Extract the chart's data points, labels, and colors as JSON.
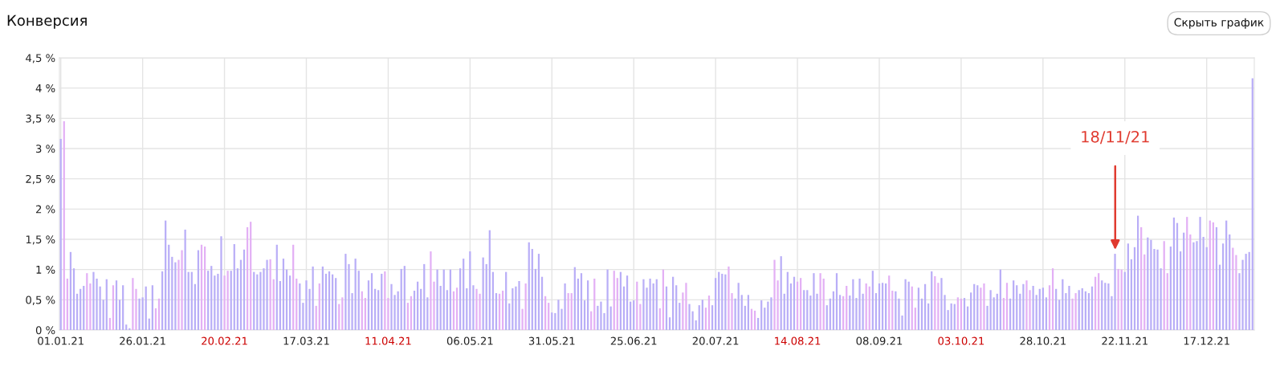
{
  "chart_data": {
    "type": "bar",
    "title": "Конверсия",
    "x": [
      "2021-01-01",
      "2021-01-02",
      "2021-01-03",
      "2021-01-04",
      "2021-01-05",
      "2021-01-06",
      "2021-01-07",
      "2021-01-08",
      "2021-01-09",
      "2021-01-10",
      "2021-01-11",
      "2021-01-12",
      "2021-01-13",
      "2021-01-14",
      "2021-01-15",
      "2021-01-16",
      "2021-01-17",
      "2021-01-18",
      "2021-01-19",
      "2021-01-20",
      "2021-01-21",
      "2021-01-22",
      "2021-01-23",
      "2021-01-24",
      "2021-01-25",
      "2021-01-26",
      "2021-01-27",
      "2021-01-28",
      "2021-01-29",
      "2021-01-30",
      "2021-01-31",
      "2021-02-01",
      "2021-02-02",
      "2021-02-03",
      "2021-02-04",
      "2021-02-05",
      "2021-02-06",
      "2021-02-07",
      "2021-02-08",
      "2021-02-09",
      "2021-02-10",
      "2021-02-11",
      "2021-02-12",
      "2021-02-13",
      "2021-02-14",
      "2021-02-15",
      "2021-02-16",
      "2021-02-17",
      "2021-02-18",
      "2021-02-19",
      "2021-02-20",
      "2021-02-21",
      "2021-02-22",
      "2021-02-23",
      "2021-02-24",
      "2021-02-25",
      "2021-02-26",
      "2021-02-27",
      "2021-02-28",
      "2021-03-01",
      "2021-03-02",
      "2021-03-03",
      "2021-03-04",
      "2021-03-05",
      "2021-03-06",
      "2021-03-07",
      "2021-03-08",
      "2021-03-09",
      "2021-03-10",
      "2021-03-11",
      "2021-03-12",
      "2021-03-13",
      "2021-03-14",
      "2021-03-15",
      "2021-03-16",
      "2021-03-17",
      "2021-03-18",
      "2021-03-19",
      "2021-03-20",
      "2021-03-21",
      "2021-03-22",
      "2021-03-23",
      "2021-03-24",
      "2021-03-25",
      "2021-03-26",
      "2021-03-27",
      "2021-03-28",
      "2021-03-29",
      "2021-03-30",
      "2021-03-31",
      "2021-04-01",
      "2021-04-02",
      "2021-04-03",
      "2021-04-04",
      "2021-04-05",
      "2021-04-06",
      "2021-04-07",
      "2021-04-08",
      "2021-04-09",
      "2021-04-10",
      "2021-04-11",
      "2021-04-12",
      "2021-04-13",
      "2021-04-14",
      "2021-04-15",
      "2021-04-16",
      "2021-04-17",
      "2021-04-18",
      "2021-04-19",
      "2021-04-20",
      "2021-04-21",
      "2021-04-22",
      "2021-04-23",
      "2021-04-24",
      "2021-04-25",
      "2021-04-26",
      "2021-04-27",
      "2021-04-28",
      "2021-04-29",
      "2021-04-30",
      "2021-05-01",
      "2021-05-02",
      "2021-05-03",
      "2021-05-04",
      "2021-05-05",
      "2021-05-06",
      "2021-05-07",
      "2021-05-08",
      "2021-05-09",
      "2021-05-10",
      "2021-05-11",
      "2021-05-12",
      "2021-05-13",
      "2021-05-14",
      "2021-05-15",
      "2021-05-16",
      "2021-05-17",
      "2021-05-18",
      "2021-05-19",
      "2021-05-20",
      "2021-05-21",
      "2021-05-22",
      "2021-05-23",
      "2021-05-24",
      "2021-05-25",
      "2021-05-26",
      "2021-05-27",
      "2021-05-28",
      "2021-05-29",
      "2021-05-30",
      "2021-05-31",
      "2021-06-01",
      "2021-06-02",
      "2021-06-03",
      "2021-06-04",
      "2021-06-05",
      "2021-06-06",
      "2021-06-07",
      "2021-06-08",
      "2021-06-09",
      "2021-06-10",
      "2021-06-11",
      "2021-06-12",
      "2021-06-13",
      "2021-06-14",
      "2021-06-15",
      "2021-06-16",
      "2021-06-17",
      "2021-06-18",
      "2021-06-19",
      "2021-06-20",
      "2021-06-21",
      "2021-06-22",
      "2021-06-23",
      "2021-06-24",
      "2021-06-25",
      "2021-06-26",
      "2021-06-27",
      "2021-06-28",
      "2021-06-29",
      "2021-06-30",
      "2021-07-01",
      "2021-07-02",
      "2021-07-03",
      "2021-07-04",
      "2021-07-05",
      "2021-07-06",
      "2021-07-07",
      "2021-07-08",
      "2021-07-09",
      "2021-07-10",
      "2021-07-11",
      "2021-07-12",
      "2021-07-13",
      "2021-07-14",
      "2021-07-15",
      "2021-07-16",
      "2021-07-17",
      "2021-07-18",
      "2021-07-19",
      "2021-07-20",
      "2021-07-21",
      "2021-07-22",
      "2021-07-23",
      "2021-07-24",
      "2021-07-25",
      "2021-07-26",
      "2021-07-27",
      "2021-07-28",
      "2021-07-29",
      "2021-07-30",
      "2021-07-31",
      "2021-08-01",
      "2021-08-02",
      "2021-08-03",
      "2021-08-04",
      "2021-08-05",
      "2021-08-06",
      "2021-08-07",
      "2021-08-08",
      "2021-08-09",
      "2021-08-10",
      "2021-08-11",
      "2021-08-12",
      "2021-08-13",
      "2021-08-14",
      "2021-08-15",
      "2021-08-16",
      "2021-08-17",
      "2021-08-18",
      "2021-08-19",
      "2021-08-20",
      "2021-08-21",
      "2021-08-22",
      "2021-08-23",
      "2021-08-24",
      "2021-08-25",
      "2021-08-26",
      "2021-08-27",
      "2021-08-28",
      "2021-08-29",
      "2021-08-30",
      "2021-08-31",
      "2021-09-01",
      "2021-09-02",
      "2021-09-03",
      "2021-09-04",
      "2021-09-05",
      "2021-09-06",
      "2021-09-07",
      "2021-09-08",
      "2021-09-09",
      "2021-09-10",
      "2021-09-11",
      "2021-09-12",
      "2021-09-13",
      "2021-09-14",
      "2021-09-15",
      "2021-09-16",
      "2021-09-17",
      "2021-09-18",
      "2021-09-19",
      "2021-09-20",
      "2021-09-21",
      "2021-09-22",
      "2021-09-23",
      "2021-09-24",
      "2021-09-25",
      "2021-09-26",
      "2021-09-27",
      "2021-09-28",
      "2021-09-29",
      "2021-09-30",
      "2021-10-01",
      "2021-10-02",
      "2021-10-03",
      "2021-10-04",
      "2021-10-05",
      "2021-10-06",
      "2021-10-07",
      "2021-10-08",
      "2021-10-09",
      "2021-10-10",
      "2021-10-11",
      "2021-10-12",
      "2021-10-13",
      "2021-10-14",
      "2021-10-15",
      "2021-10-16",
      "2021-10-17",
      "2021-10-18",
      "2021-10-19",
      "2021-10-20",
      "2021-10-21",
      "2021-10-22",
      "2021-10-23",
      "2021-10-24",
      "2021-10-25",
      "2021-10-26",
      "2021-10-27",
      "2021-10-28",
      "2021-10-29",
      "2021-10-30",
      "2021-10-31",
      "2021-11-01",
      "2021-11-02",
      "2021-11-03",
      "2021-11-04",
      "2021-11-05",
      "2021-11-06",
      "2021-11-07",
      "2021-11-08",
      "2021-11-09",
      "2021-11-10",
      "2021-11-11",
      "2021-11-12",
      "2021-11-13",
      "2021-11-14",
      "2021-11-15",
      "2021-11-16",
      "2021-11-17",
      "2021-11-18",
      "2021-11-19",
      "2021-11-20",
      "2021-11-21",
      "2021-11-22",
      "2021-11-23",
      "2021-11-24",
      "2021-11-25",
      "2021-11-26",
      "2021-11-27",
      "2021-11-28",
      "2021-11-29",
      "2021-11-30",
      "2021-12-01",
      "2021-12-02",
      "2021-12-03",
      "2021-12-04",
      "2021-12-05",
      "2021-12-06",
      "2021-12-07",
      "2021-12-08",
      "2021-12-09",
      "2021-12-10",
      "2021-12-11",
      "2021-12-12",
      "2021-12-13",
      "2021-12-14",
      "2021-12-15",
      "2021-12-16",
      "2021-12-17",
      "2021-12-18",
      "2021-12-19",
      "2021-12-20",
      "2021-12-21",
      "2021-12-22",
      "2021-12-23",
      "2021-12-24",
      "2021-12-25",
      "2021-12-26",
      "2021-12-27",
      "2021-12-28",
      "2021-12-29",
      "2021-12-30",
      "2021-12-31"
    ],
    "values": [
      3.16,
      3.45,
      0.85,
      1.29,
      1.02,
      0.6,
      0.68,
      0.73,
      0.94,
      0.77,
      0.96,
      0.85,
      0.72,
      0.5,
      0.84,
      0.2,
      0.74,
      0.82,
      0.5,
      0.74,
      0.09,
      0.03,
      0.86,
      0.68,
      0.52,
      0.54,
      0.72,
      0.19,
      0.74,
      0.36,
      0.52,
      0.97,
      1.81,
      1.41,
      1.21,
      1.12,
      1.16,
      1.32,
      1.66,
      0.96,
      0.96,
      0.76,
      1.32,
      1.41,
      1.38,
      0.98,
      1.06,
      0.9,
      0.93,
      1.55,
      0.9,
      0.98,
      0.98,
      1.42,
      1.02,
      1.16,
      1.33,
      1.7,
      1.79,
      0.96,
      0.92,
      0.96,
      1.02,
      1.16,
      1.17,
      0.84,
      1.41,
      0.81,
      1.18,
      1.0,
      0.9,
      1.41,
      0.85,
      0.77,
      0.45,
      0.82,
      0.68,
      1.05,
      0.4,
      0.77,
      1.05,
      0.93,
      0.97,
      0.92,
      0.86,
      0.43,
      0.54,
      1.26,
      1.09,
      0.61,
      1.18,
      0.98,
      0.64,
      0.53,
      0.82,
      0.94,
      0.68,
      0.66,
      0.93,
      0.97,
      0.53,
      0.76,
      0.58,
      0.64,
      1.01,
      1.06,
      0.45,
      0.56,
      0.65,
      0.8,
      0.68,
      1.09,
      0.54,
      1.3,
      0.8,
      1.0,
      0.73,
      1.0,
      0.66,
      1.0,
      0.64,
      0.7,
      1.02,
      1.18,
      0.69,
      1.3,
      0.74,
      0.68,
      0.6,
      1.2,
      1.09,
      1.65,
      0.96,
      0.61,
      0.6,
      0.65,
      0.96,
      0.44,
      0.69,
      0.72,
      0.81,
      0.35,
      0.77,
      1.45,
      1.34,
      1.01,
      1.26,
      0.88,
      0.56,
      0.45,
      0.29,
      0.28,
      0.5,
      0.35,
      0.77,
      0.61,
      0.61,
      1.04,
      0.85,
      0.94,
      0.49,
      0.82,
      0.31,
      0.85,
      0.4,
      0.47,
      0.28,
      1.0,
      0.39,
      0.98,
      0.86,
      0.96,
      0.72,
      0.9,
      0.47,
      0.49,
      0.8,
      0.43,
      0.84,
      0.7,
      0.85,
      0.77,
      0.84,
      0.36,
      1.0,
      0.72,
      0.21,
      0.88,
      0.74,
      0.45,
      0.62,
      0.78,
      0.43,
      0.31,
      0.16,
      0.41,
      0.5,
      0.37,
      0.57,
      0.41,
      0.86,
      0.96,
      0.93,
      0.92,
      1.05,
      0.61,
      0.52,
      0.78,
      0.58,
      0.4,
      0.58,
      0.35,
      0.32,
      0.2,
      0.49,
      0.37,
      0.47,
      0.54,
      1.16,
      0.82,
      1.22,
      0.6,
      0.96,
      0.77,
      0.88,
      0.8,
      0.86,
      0.66,
      0.66,
      0.57,
      0.94,
      0.6,
      0.94,
      0.85,
      0.41,
      0.52,
      0.64,
      0.94,
      0.58,
      0.56,
      0.73,
      0.57,
      0.84,
      0.53,
      0.85,
      0.6,
      0.77,
      0.72,
      0.98,
      0.61,
      0.77,
      0.78,
      0.77,
      0.9,
      0.65,
      0.64,
      0.52,
      0.24,
      0.84,
      0.8,
      0.72,
      0.37,
      0.7,
      0.52,
      0.76,
      0.44,
      0.97,
      0.89,
      0.78,
      0.86,
      0.58,
      0.33,
      0.44,
      0.43,
      0.54,
      0.52,
      0.53,
      0.39,
      0.62,
      0.76,
      0.74,
      0.7,
      0.77,
      0.4,
      0.66,
      0.54,
      0.6,
      1.0,
      0.53,
      0.78,
      0.52,
      0.82,
      0.74,
      0.6,
      0.76,
      0.82,
      0.66,
      0.73,
      0.58,
      0.68,
      0.7,
      0.54,
      0.74,
      1.02,
      0.68,
      0.5,
      0.84,
      0.61,
      0.73,
      0.52,
      0.61,
      0.66,
      0.69,
      0.64,
      0.61,
      0.72,
      0.88,
      0.94,
      0.82,
      0.78,
      0.77,
      0.56,
      1.26,
      1.01,
      1.0,
      0.96,
      1.43,
      1.17,
      1.37,
      1.89,
      1.7,
      1.25,
      1.53,
      1.49,
      1.34,
      1.33,
      1.02,
      1.47,
      0.94,
      1.38,
      1.86,
      1.77,
      1.3,
      1.61,
      1.87,
      1.58,
      1.45,
      1.47,
      1.87,
      1.54,
      1.37,
      1.81,
      1.78,
      1.7,
      1.08,
      1.43,
      1.81,
      1.58,
      1.36,
      1.24,
      0.94,
      1.16,
      1.26,
      1.29,
      4.16
    ],
    "colors": [
      "#b9aef7",
      "#e3b0f5",
      "#e3b0f5",
      "#b9aef7",
      "#b9aef7",
      "#b9aef7",
      "#b9aef7",
      "#b9aef7",
      "#e3b0f5",
      "#e3b0f5",
      "#b9aef7",
      "#b9aef7",
      "#b9aef7",
      "#b9aef7",
      "#b9aef7",
      "#e3b0f5",
      "#e3b0f5",
      "#b9aef7",
      "#b9aef7",
      "#b9aef7",
      "#b9aef7",
      "#b9aef7",
      "#e3b0f5",
      "#e3b0f5",
      "#b9aef7",
      "#b9aef7",
      "#b9aef7",
      "#b9aef7",
      "#b9aef7",
      "#e3b0f5",
      "#e3b0f5",
      "#b9aef7",
      "#b9aef7",
      "#b9aef7",
      "#b9aef7",
      "#b9aef7",
      "#e3b0f5",
      "#e3b0f5",
      "#b9aef7",
      "#b9aef7",
      "#b9aef7",
      "#b9aef7",
      "#b9aef7",
      "#e3b0f5",
      "#e3b0f5",
      "#b9aef7",
      "#b9aef7",
      "#b9aef7",
      "#b9aef7",
      "#b9aef7",
      "#e3b0f5",
      "#e3b0f5",
      "#b9aef7",
      "#b9aef7",
      "#b9aef7",
      "#b9aef7",
      "#b9aef7",
      "#e3b0f5",
      "#e3b0f5",
      "#b9aef7",
      "#b9aef7",
      "#b9aef7",
      "#b9aef7",
      "#b9aef7",
      "#e3b0f5",
      "#e3b0f5",
      "#b9aef7",
      "#b9aef7",
      "#b9aef7",
      "#b9aef7",
      "#b9aef7",
      "#e3b0f5",
      "#e3b0f5",
      "#b9aef7",
      "#b9aef7",
      "#b9aef7",
      "#b9aef7",
      "#b9aef7",
      "#e3b0f5",
      "#e3b0f5",
      "#b9aef7",
      "#b9aef7",
      "#b9aef7",
      "#b9aef7",
      "#b9aef7",
      "#e3b0f5",
      "#e3b0f5",
      "#b9aef7",
      "#b9aef7",
      "#b9aef7",
      "#b9aef7",
      "#b9aef7",
      "#e3b0f5",
      "#e3b0f5",
      "#b9aef7",
      "#b9aef7",
      "#b9aef7",
      "#b9aef7",
      "#b9aef7",
      "#e3b0f5",
      "#e3b0f5",
      "#b9aef7",
      "#b9aef7",
      "#b9aef7",
      "#b9aef7",
      "#b9aef7",
      "#e3b0f5",
      "#e3b0f5",
      "#b9aef7",
      "#b9aef7",
      "#b9aef7",
      "#b9aef7",
      "#b9aef7",
      "#e3b0f5",
      "#e3b0f5",
      "#b9aef7",
      "#b9aef7",
      "#b9aef7",
      "#b9aef7",
      "#b9aef7",
      "#e3b0f5",
      "#e3b0f5",
      "#b9aef7",
      "#b9aef7",
      "#b9aef7",
      "#b9aef7",
      "#b9aef7",
      "#e3b0f5",
      "#e3b0f5",
      "#b9aef7",
      "#b9aef7",
      "#b9aef7",
      "#b9aef7",
      "#b9aef7",
      "#e3b0f5",
      "#e3b0f5",
      "#b9aef7",
      "#b9aef7",
      "#b9aef7",
      "#b9aef7",
      "#b9aef7",
      "#e3b0f5",
      "#e3b0f5",
      "#b9aef7",
      "#b9aef7",
      "#b9aef7",
      "#b9aef7",
      "#b9aef7",
      "#e3b0f5",
      "#e3b0f5",
      "#b9aef7",
      "#b9aef7",
      "#b9aef7",
      "#b9aef7",
      "#b9aef7",
      "#e3b0f5",
      "#e3b0f5",
      "#b9aef7",
      "#b9aef7",
      "#b9aef7",
      "#b9aef7",
      "#b9aef7",
      "#e3b0f5",
      "#e3b0f5",
      "#b9aef7",
      "#b9aef7",
      "#b9aef7",
      "#b9aef7",
      "#b9aef7",
      "#e3b0f5",
      "#e3b0f5",
      "#b9aef7",
      "#b9aef7",
      "#b9aef7",
      "#b9aef7",
      "#b9aef7",
      "#e3b0f5",
      "#e3b0f5",
      "#b9aef7",
      "#b9aef7",
      "#b9aef7",
      "#b9aef7",
      "#b9aef7",
      "#e3b0f5",
      "#e3b0f5",
      "#b9aef7",
      "#b9aef7",
      "#b9aef7",
      "#b9aef7",
      "#b9aef7",
      "#e3b0f5",
      "#e3b0f5",
      "#b9aef7",
      "#b9aef7",
      "#b9aef7",
      "#b9aef7",
      "#b9aef7",
      "#e3b0f5",
      "#e3b0f5",
      "#b9aef7",
      "#b9aef7",
      "#b9aef7",
      "#b9aef7",
      "#b9aef7",
      "#e3b0f5",
      "#e3b0f5",
      "#b9aef7",
      "#b9aef7",
      "#b9aef7",
      "#b9aef7",
      "#b9aef7",
      "#e3b0f5",
      "#e3b0f5",
      "#b9aef7",
      "#b9aef7",
      "#b9aef7",
      "#b9aef7",
      "#b9aef7",
      "#e3b0f5",
      "#e3b0f5",
      "#b9aef7",
      "#b9aef7",
      "#b9aef7",
      "#b9aef7",
      "#b9aef7",
      "#e3b0f5",
      "#e3b0f5",
      "#b9aef7",
      "#b9aef7",
      "#b9aef7",
      "#b9aef7",
      "#b9aef7",
      "#e3b0f5",
      "#e3b0f5",
      "#b9aef7",
      "#b9aef7",
      "#b9aef7",
      "#b9aef7",
      "#b9aef7",
      "#e3b0f5",
      "#e3b0f5",
      "#b9aef7",
      "#b9aef7",
      "#b9aef7",
      "#b9aef7",
      "#b9aef7",
      "#e3b0f5",
      "#e3b0f5",
      "#b9aef7",
      "#b9aef7",
      "#b9aef7",
      "#b9aef7",
      "#b9aef7",
      "#e3b0f5",
      "#e3b0f5",
      "#b9aef7",
      "#b9aef7",
      "#b9aef7",
      "#b9aef7",
      "#b9aef7",
      "#e3b0f5",
      "#e3b0f5",
      "#b9aef7",
      "#b9aef7",
      "#b9aef7",
      "#b9aef7",
      "#b9aef7",
      "#e3b0f5",
      "#e3b0f5",
      "#b9aef7",
      "#b9aef7",
      "#b9aef7",
      "#b9aef7",
      "#b9aef7",
      "#e3b0f5",
      "#e3b0f5",
      "#b9aef7",
      "#b9aef7",
      "#b9aef7",
      "#b9aef7",
      "#b9aef7",
      "#e3b0f5",
      "#e3b0f5",
      "#b9aef7",
      "#b9aef7",
      "#b9aef7",
      "#b9aef7",
      "#b9aef7",
      "#e3b0f5",
      "#e3b0f5",
      "#b9aef7",
      "#b9aef7",
      "#b9aef7",
      "#b9aef7",
      "#b9aef7",
      "#e3b0f5",
      "#e3b0f5",
      "#b9aef7",
      "#b9aef7",
      "#b9aef7",
      "#b9aef7",
      "#b9aef7",
      "#e3b0f5",
      "#e3b0f5",
      "#b9aef7",
      "#b9aef7",
      "#b9aef7",
      "#b9aef7",
      "#b9aef7",
      "#e3b0f5",
      "#e3b0f5",
      "#b9aef7",
      "#b9aef7",
      "#b9aef7",
      "#b9aef7",
      "#b9aef7",
      "#e3b0f5",
      "#e3b0f5",
      "#b9aef7",
      "#b9aef7",
      "#b9aef7",
      "#b9aef7",
      "#b9aef7",
      "#e3b0f5",
      "#e3b0f5",
      "#b9aef7",
      "#b9aef7",
      "#b9aef7",
      "#b9aef7",
      "#b9aef7",
      "#e3b0f5",
      "#e3b0f5",
      "#b9aef7",
      "#b9aef7",
      "#b9aef7",
      "#b9aef7",
      "#b9aef7",
      "#e3b0f5",
      "#e3b0f5",
      "#b9aef7",
      "#b9aef7",
      "#b9aef7",
      "#b9aef7",
      "#b9aef7",
      "#e3b0f5",
      "#e3b0f5",
      "#b9aef7",
      "#b9aef7",
      "#b9aef7",
      "#b9aef7",
      "#b9aef7",
      "#e3b0f5",
      "#e3b0f5",
      "#b9aef7",
      "#b9aef7",
      "#b9aef7",
      "#b9aef7",
      "#b9aef7",
      "#e3b0f5",
      "#e3b0f5",
      "#b9aef7",
      "#b9aef7",
      "#b9aef7",
      "#b9aef7",
      "#b9aef7"
    ],
    "xlim": [
      "2020-12-31T14:00",
      "2021-12-31T13:00"
    ],
    "xticks": [
      {
        "value": "2021-01-01",
        "label": "01.01.21"
      },
      {
        "value": "2021-01-26",
        "label": "26.01.21"
      },
      {
        "value": "2021-02-20",
        "label": "20.02.21"
      },
      {
        "value": "2021-03-17",
        "label": "17.03.21"
      },
      {
        "value": "2021-04-11",
        "label": "11.04.21"
      },
      {
        "value": "2021-05-06",
        "label": "06.05.21"
      },
      {
        "value": "2021-05-31",
        "label": "31.05.21"
      },
      {
        "value": "2021-06-25",
        "label": "25.06.21"
      },
      {
        "value": "2021-07-20",
        "label": "20.07.21"
      },
      {
        "value": "2021-08-14",
        "label": "14.08.21"
      },
      {
        "value": "2021-09-08",
        "label": "08.09.21"
      },
      {
        "value": "2021-10-03",
        "label": "03.10.21"
      },
      {
        "value": "2021-10-28",
        "label": "28.10.21"
      },
      {
        "value": "2021-11-22",
        "label": "22.11.21"
      },
      {
        "value": "2021-12-17",
        "label": "17.12.21"
      }
    ],
    "ylim": [
      0,
      4.5
    ],
    "yticks": [
      {
        "value": 0,
        "label": "0 %"
      },
      {
        "value": 0.5,
        "label": "0,5 %"
      },
      {
        "value": 1,
        "label": "1 %"
      },
      {
        "value": 1.5,
        "label": "1,5 %"
      },
      {
        "value": 2,
        "label": "2 %"
      },
      {
        "value": 2.5,
        "label": "2,5 %"
      },
      {
        "value": 3,
        "label": "3 %"
      },
      {
        "value": 3.5,
        "label": "3,5 %"
      },
      {
        "value": 4,
        "label": "4 %"
      },
      {
        "value": 4.5,
        "label": "4,5 %"
      }
    ],
    "grid": true,
    "annotations": [
      "Скрыть график",
      "18/11/21"
    ]
  }
}
